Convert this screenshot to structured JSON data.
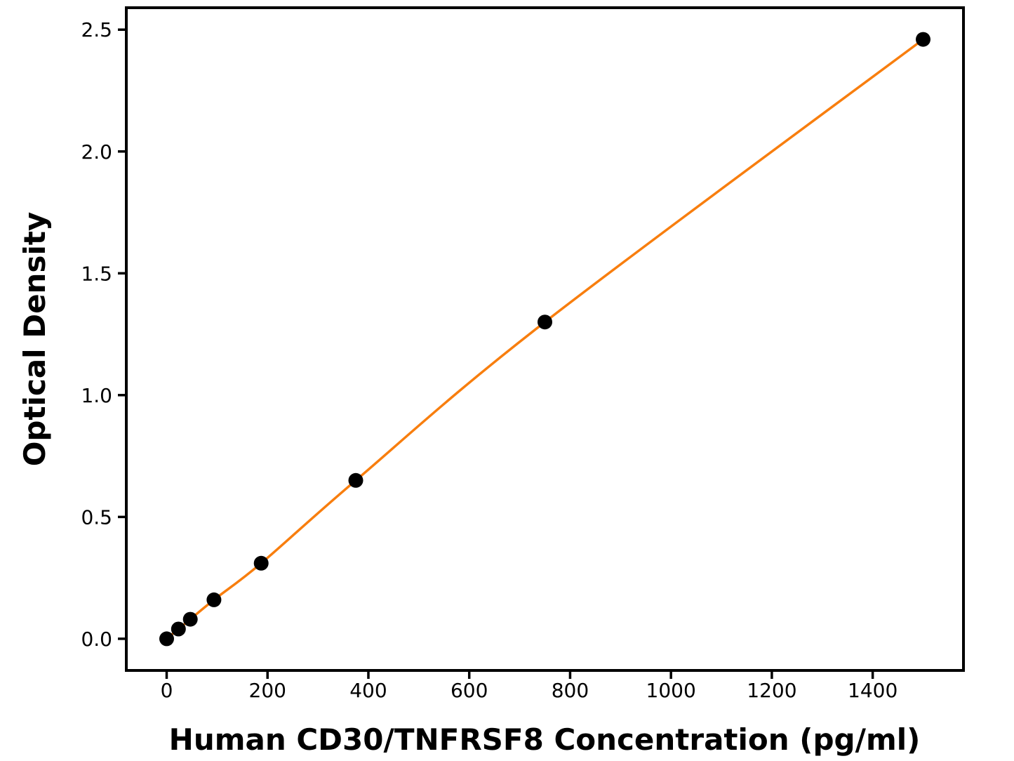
{
  "chart_data": {
    "type": "line",
    "markers": true,
    "title": "",
    "xlabel": "Human CD30/TNFRSF8 Concentration (pg/ml)",
    "ylabel": "Optical Density",
    "x": [
      0,
      23.4,
      46.9,
      93.8,
      187.5,
      375,
      750,
      1500
    ],
    "y": [
      0.0,
      0.04,
      0.08,
      0.16,
      0.31,
      0.65,
      1.3,
      2.46
    ],
    "xticks": [
      0,
      200,
      400,
      600,
      800,
      1000,
      1200,
      1400
    ],
    "xtick_labels": [
      "0",
      "200",
      "400",
      "600",
      "800",
      "1000",
      "1200",
      "1400"
    ],
    "yticks": [
      0.0,
      0.5,
      1.0,
      1.5,
      2.0,
      2.5
    ],
    "ytick_labels": [
      "0.0",
      "0.5",
      "1.0",
      "1.5",
      "2.0",
      "2.5"
    ],
    "xlim": [
      -80,
      1580
    ],
    "ylim": [
      -0.13,
      2.59
    ],
    "grid": false,
    "legend": null,
    "line_color": "#F87E0E",
    "marker_color": "#000000",
    "axis_color": "#000000",
    "background_color": "#FFFFFF"
  }
}
